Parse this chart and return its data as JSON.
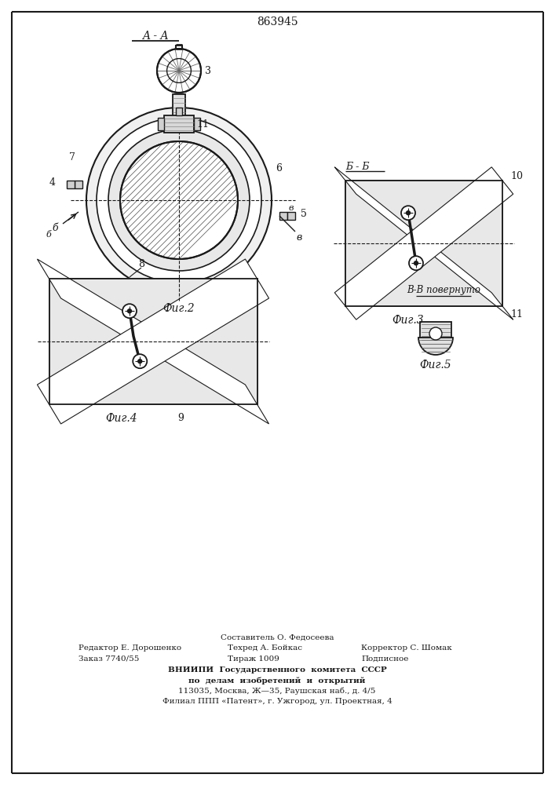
{
  "patent_number": "863945",
  "section_label_aa": "A - A",
  "section_label_bb": "Б - Б",
  "section_label_bv": "В-В повернуто",
  "fig2_label": "Фиг.2",
  "fig3_label": "Фиг.3",
  "fig4_label": "Фиг.4",
  "fig5_label": "Фиг.5",
  "bg_color": "#ffffff",
  "line_color": "#1a1a1a",
  "footer_line1": "Составитель О. Федосеева",
  "footer_line2_left": "Редактор Е. Дорошенко",
  "footer_line2_mid": "Техред А. Бойкас",
  "footer_line2_right": "Корректор С. Шомак",
  "footer_line3_left": "Заказ 7740/55",
  "footer_line3_mid": "Тираж 1009",
  "footer_line3_right": "Подписное",
  "footer_line4": "ВНИИПИ  Государственного  комитета  СССР",
  "footer_line5": "по  делам  изобретений  и  открытий",
  "footer_line6": "113035, Москва, Ж—35, Раушская наб., д. 4/5",
  "footer_line7": "Филиал ППП «Патент», г. Ужгород, ул. Проектная, 4"
}
